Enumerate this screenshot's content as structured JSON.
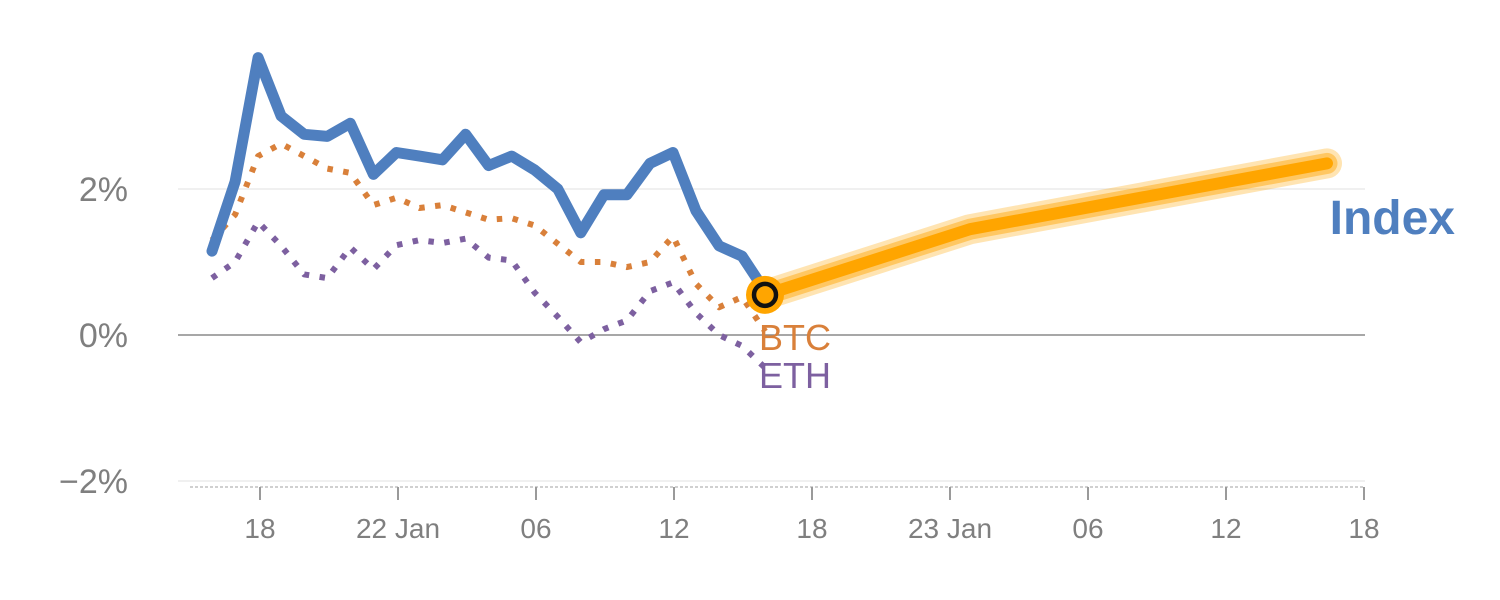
{
  "chart_data": {
    "type": "line",
    "title": "",
    "xlabel": "",
    "ylabel": "",
    "ylim": [
      -2,
      4
    ],
    "y_ticks": [
      {
        "value": 2,
        "label": "2%"
      },
      {
        "value": 0,
        "label": "0%"
      },
      {
        "value": -2,
        "label": "−2%"
      }
    ],
    "x_ticks": [
      "18",
      "22 Jan",
      "06",
      "12",
      "18",
      "23 Jan",
      "06",
      "12",
      "18"
    ],
    "grid": "horizontal",
    "legend": "direct labels at line ends",
    "series": [
      {
        "name": "Index",
        "style": "solid",
        "color": "#4f7fbf",
        "values": [
          1.15,
          2.1,
          3.8,
          3.0,
          2.75,
          2.72,
          2.9,
          2.2,
          2.5,
          2.45,
          2.4,
          2.75,
          2.32,
          2.45,
          2.26,
          2.0,
          1.4,
          1.92,
          1.92,
          2.35,
          2.5,
          1.7,
          1.22,
          1.08,
          0.6
        ]
      },
      {
        "name": "BTC",
        "style": "dotted",
        "color": "#d9803a",
        "values": [
          1.3,
          1.65,
          2.45,
          2.62,
          2.45,
          2.28,
          2.22,
          1.78,
          1.88,
          1.74,
          1.78,
          1.68,
          1.58,
          1.6,
          1.5,
          1.25,
          1.0,
          1.0,
          0.93,
          1.0,
          1.35,
          0.7,
          0.38,
          0.52,
          0.05
        ]
      },
      {
        "name": "ETH",
        "style": "dotted",
        "color": "#7d60a0",
        "values": [
          0.78,
          1.0,
          1.55,
          1.22,
          0.83,
          0.78,
          1.2,
          0.9,
          1.23,
          1.3,
          1.26,
          1.32,
          1.06,
          1.02,
          0.58,
          0.25,
          -0.1,
          0.08,
          0.2,
          0.6,
          0.72,
          0.3,
          0.0,
          -0.15,
          -0.45
        ]
      },
      {
        "name": "",
        "style": "forecast",
        "color": "#ffa500",
        "values": [
          0.55,
          1.45,
          2.35
        ]
      }
    ]
  }
}
